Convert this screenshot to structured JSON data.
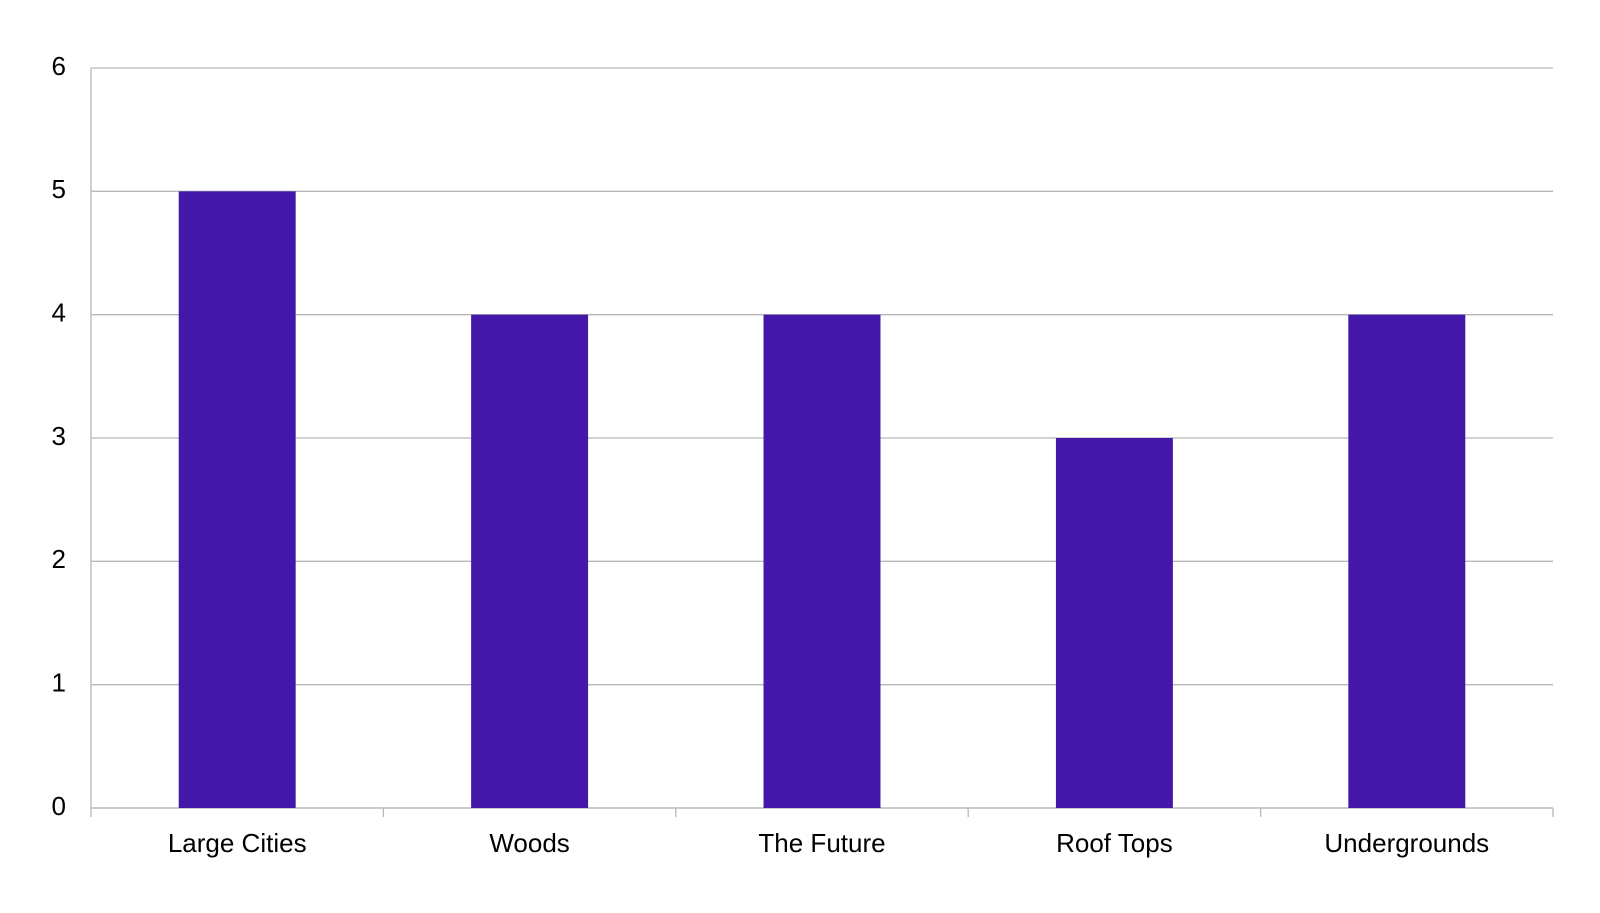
{
  "chart_data": {
    "type": "bar",
    "categories": [
      "Large Cities",
      "Woods",
      "The Future",
      "Roof Tops",
      "Undergrounds"
    ],
    "values": [
      5,
      4,
      4,
      3,
      4
    ],
    "color": "#4318a8",
    "ylim": [
      0,
      6
    ],
    "yticks": [
      0,
      1,
      2,
      3,
      4,
      5,
      6
    ],
    "grid": true
  }
}
